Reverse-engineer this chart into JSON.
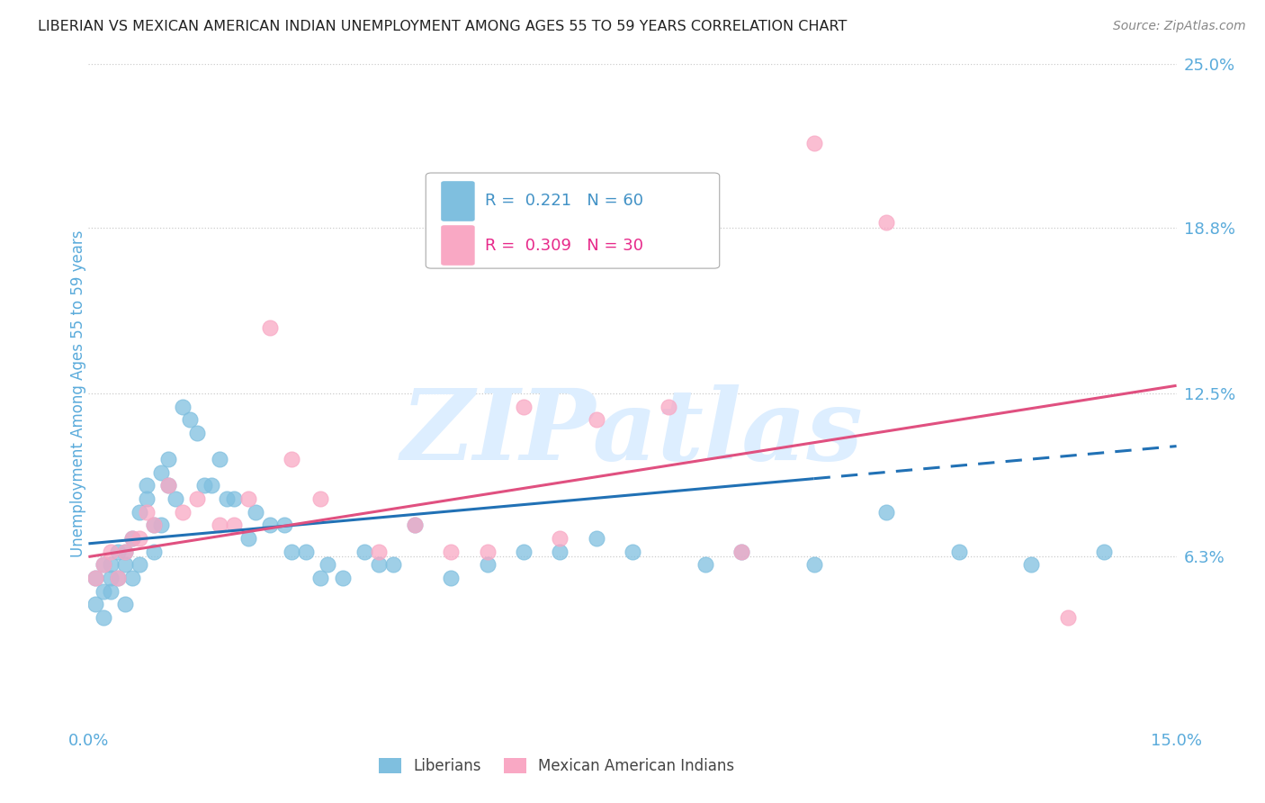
{
  "title": "LIBERIAN VS MEXICAN AMERICAN INDIAN UNEMPLOYMENT AMONG AGES 55 TO 59 YEARS CORRELATION CHART",
  "source": "Source: ZipAtlas.com",
  "ylabel": "Unemployment Among Ages 55 to 59 years",
  "xlim": [
    0.0,
    0.15
  ],
  "ylim": [
    0.0,
    0.25
  ],
  "xtick_vals": [
    0.0,
    0.05,
    0.1,
    0.15
  ],
  "xtick_labels": [
    "0.0%",
    "",
    "",
    "15.0%"
  ],
  "yticks_right": [
    0.063,
    0.125,
    0.188,
    0.25
  ],
  "ytick_labels_right": [
    "6.3%",
    "12.5%",
    "18.8%",
    "25.0%"
  ],
  "R_liberian": 0.221,
  "N_liberian": 60,
  "R_mexican": 0.309,
  "N_mexican": 30,
  "color_liberian": "#7fbfdf",
  "color_mexican": "#f9a8c4",
  "color_liberian_line": "#2171b5",
  "color_mexican_line": "#e05080",
  "color_liberian_text": "#4292c6",
  "color_mexican_text": "#e7298a",
  "color_axis": "#5aabdb",
  "watermark": "ZIPatlas",
  "watermark_color": "#ddeeff",
  "liberian_x": [
    0.001,
    0.001,
    0.002,
    0.002,
    0.002,
    0.003,
    0.003,
    0.003,
    0.004,
    0.004,
    0.005,
    0.005,
    0.005,
    0.006,
    0.006,
    0.007,
    0.007,
    0.008,
    0.008,
    0.009,
    0.009,
    0.01,
    0.01,
    0.011,
    0.011,
    0.012,
    0.013,
    0.014,
    0.015,
    0.016,
    0.017,
    0.018,
    0.019,
    0.02,
    0.022,
    0.023,
    0.025,
    0.027,
    0.028,
    0.03,
    0.032,
    0.033,
    0.035,
    0.038,
    0.04,
    0.042,
    0.045,
    0.05,
    0.055,
    0.06,
    0.065,
    0.07,
    0.075,
    0.085,
    0.09,
    0.1,
    0.11,
    0.12,
    0.13,
    0.14
  ],
  "liberian_y": [
    0.045,
    0.055,
    0.05,
    0.06,
    0.04,
    0.05,
    0.055,
    0.06,
    0.055,
    0.065,
    0.045,
    0.06,
    0.065,
    0.055,
    0.07,
    0.06,
    0.08,
    0.09,
    0.085,
    0.065,
    0.075,
    0.075,
    0.095,
    0.1,
    0.09,
    0.085,
    0.12,
    0.115,
    0.11,
    0.09,
    0.09,
    0.1,
    0.085,
    0.085,
    0.07,
    0.08,
    0.075,
    0.075,
    0.065,
    0.065,
    0.055,
    0.06,
    0.055,
    0.065,
    0.06,
    0.06,
    0.075,
    0.055,
    0.06,
    0.065,
    0.065,
    0.07,
    0.065,
    0.06,
    0.065,
    0.06,
    0.08,
    0.065,
    0.06,
    0.065
  ],
  "mexican_x": [
    0.001,
    0.002,
    0.003,
    0.004,
    0.005,
    0.006,
    0.007,
    0.008,
    0.009,
    0.011,
    0.013,
    0.015,
    0.018,
    0.02,
    0.022,
    0.025,
    0.028,
    0.032,
    0.04,
    0.045,
    0.05,
    0.055,
    0.06,
    0.065,
    0.07,
    0.08,
    0.09,
    0.1,
    0.11,
    0.135
  ],
  "mexican_y": [
    0.055,
    0.06,
    0.065,
    0.055,
    0.065,
    0.07,
    0.07,
    0.08,
    0.075,
    0.09,
    0.08,
    0.085,
    0.075,
    0.075,
    0.085,
    0.15,
    0.1,
    0.085,
    0.065,
    0.075,
    0.065,
    0.065,
    0.12,
    0.07,
    0.115,
    0.12,
    0.065,
    0.22,
    0.19,
    0.04
  ],
  "trend_lib_x0": 0.0,
  "trend_lib_x1": 0.15,
  "trend_lib_y0": 0.068,
  "trend_lib_y1": 0.105,
  "trend_lib_solid_end": 0.1,
  "trend_mex_x0": 0.0,
  "trend_mex_x1": 0.15,
  "trend_mex_y0": 0.063,
  "trend_mex_y1": 0.128
}
